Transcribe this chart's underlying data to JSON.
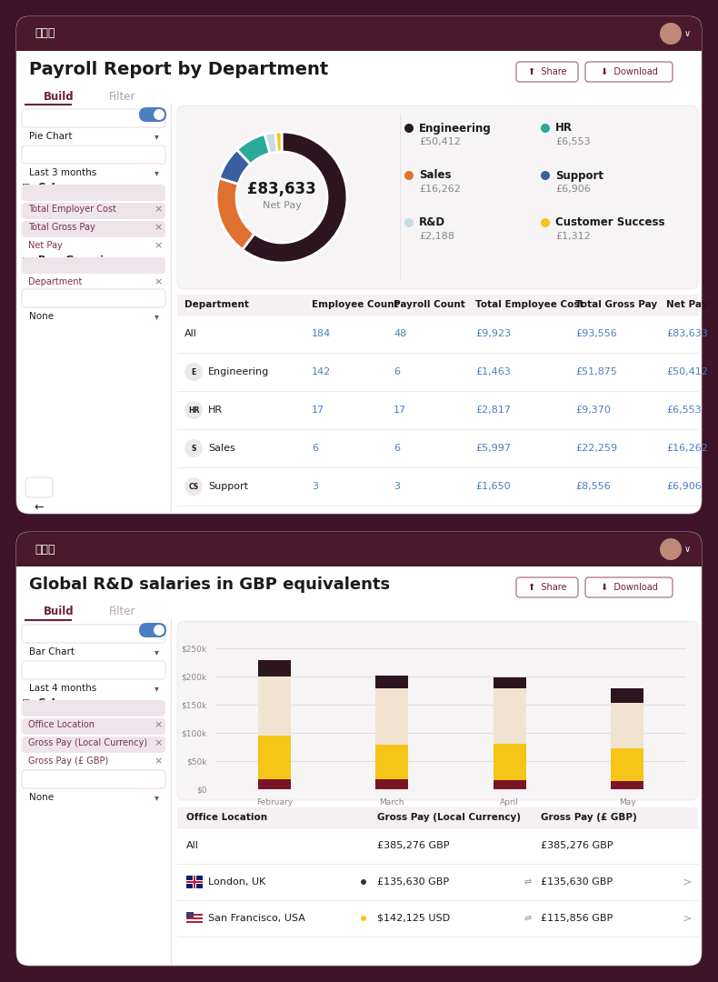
{
  "bg_color": "#3d1428",
  "panel_bg": "#ffffff",
  "header_bg": "#4a1a2c",
  "title1": "Payroll Report by Department",
  "title2": "Global R&D salaries in GBP equivalents",
  "rippling_logo": "꩜꩜꩜",
  "accent_color": "#6b1f3a",
  "toggle_on_color": "#4a7fc1",
  "pie_center_value": "£83,633",
  "pie_center_label": "Net Pay",
  "pie_segments": [
    {
      "label": "Engineering",
      "value": 50412,
      "color": "#2d1520"
    },
    {
      "label": "Sales",
      "value": 16262,
      "color": "#e07030"
    },
    {
      "label": "Support",
      "value": 6906,
      "color": "#3a5fa0"
    },
    {
      "label": "HR",
      "value": 6553,
      "color": "#2aaa98"
    },
    {
      "label": "R&D",
      "value": 2188,
      "color": "#c8dce8"
    },
    {
      "label": "Customer Success",
      "value": 1312,
      "color": "#f5c518"
    }
  ],
  "pie_legend": [
    {
      "label": "Engineering",
      "value": "£50,412",
      "color": "#2d1520"
    },
    {
      "label": "HR",
      "value": "£6,553",
      "color": "#2aaa98"
    },
    {
      "label": "Sales",
      "value": "£16,262",
      "color": "#e07030"
    },
    {
      "label": "Support",
      "value": "£6,906",
      "color": "#3a5fa0"
    },
    {
      "label": "R&D",
      "value": "£2,188",
      "color": "#c8dce8"
    },
    {
      "label": "Customer Success",
      "value": "£1,312",
      "color": "#f5c518"
    }
  ],
  "table1_headers": [
    "Department",
    "Employee Count",
    "Payroll Count",
    "Total Employee Cost",
    "Total Gross Pay",
    "Net Pay"
  ],
  "table1_col_widths": [
    140,
    90,
    90,
    110,
    100,
    80
  ],
  "table1_rows": [
    {
      "dept": "All",
      "emp": "184",
      "payroll": "48",
      "tec": "£9,923",
      "tgp": "£93,556",
      "np": "£83,633",
      "badge": ""
    },
    {
      "dept": "Engineering",
      "emp": "142",
      "payroll": "6",
      "tec": "£1,463",
      "tgp": "£51,875",
      "np": "£50,412",
      "badge": "E"
    },
    {
      "dept": "HR",
      "emp": "17",
      "payroll": "17",
      "tec": "£2,817",
      "tgp": "£9,370",
      "np": "£6,553",
      "badge": "HR"
    },
    {
      "dept": "Sales",
      "emp": "6",
      "payroll": "6",
      "tec": "£5,997",
      "tgp": "£22,259",
      "np": "£16,262",
      "badge": "S"
    },
    {
      "dept": "Support",
      "emp": "3",
      "payroll": "3",
      "tec": "£1,650",
      "tgp": "£8,556",
      "np": "£6,906",
      "badge": "CS"
    }
  ],
  "bar_months": [
    "February",
    "March",
    "April",
    "May"
  ],
  "bar_layer_colors": [
    "#7a1525",
    "#f5c518",
    "#f0e4d0",
    "#2d1520"
  ],
  "bar_data": {
    "February": [
      18000,
      78000,
      105000,
      28000
    ],
    "March": [
      18000,
      62000,
      100000,
      22000
    ],
    "April": [
      16000,
      65000,
      98000,
      20000
    ],
    "May": [
      14000,
      58000,
      82000,
      26000
    ]
  },
  "bar_ytick_vals": [
    0,
    50000,
    100000,
    150000,
    200000,
    250000
  ],
  "bar_ytick_labels": [
    "$0",
    "$50k",
    "$100k",
    "$150k",
    "$200k",
    "$250k"
  ],
  "table2_headers": [
    "Office Location",
    "Gross Pay (Local Currency)",
    "Gross Pay (£ GBP)"
  ],
  "table2_rows": [
    {
      "loc": "All",
      "flag": "",
      "local": "£385,276 GBP",
      "gbp": "£385,276 GBP",
      "dot": false
    },
    {
      "loc": "London, UK",
      "flag": "gb",
      "local": "£135,630 GBP",
      "gbp": "£135,630 GBP",
      "dot": true
    },
    {
      "loc": "San Francisco, USA",
      "flag": "us",
      "local": "$142,125 USD",
      "gbp": "£115,856 GBP",
      "dot": true
    }
  ],
  "col_tag_bg": "#ede5ea",
  "col_tag_text": "#7a3050",
  "divider_color": "#e8e0e4",
  "link_color": "#4a7fc1",
  "text_dark": "#1a1a1a",
  "text_gray": "#888888",
  "sidebar_section_bg": "#f7f3f5",
  "chart_area_bg": "#f7f4f5"
}
